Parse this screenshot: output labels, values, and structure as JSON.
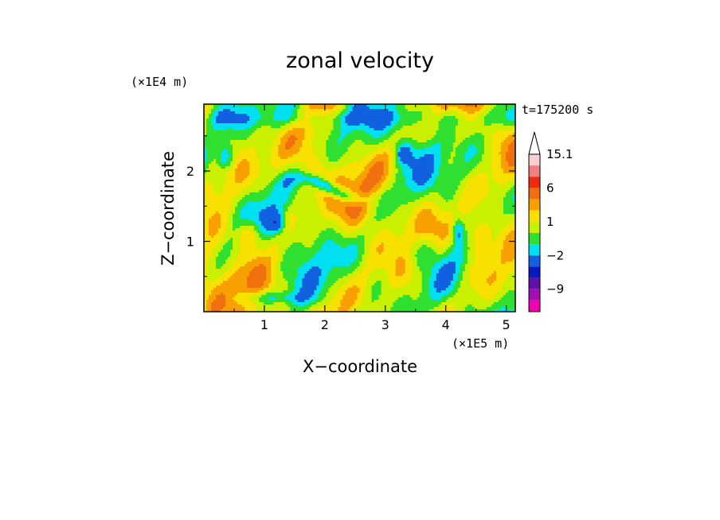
{
  "chart_data": {
    "type": "heatmap",
    "title": "zonal velocity",
    "xlabel": "X−coordinate",
    "ylabel": "Z−coordinate",
    "x_unit": "(×1E5 m)",
    "y_unit": "(×1E4 m)",
    "time_label": "t=175200 s",
    "xlim": [
      0,
      5.15
    ],
    "ylim": [
      0,
      2.95
    ],
    "x_ticks": [
      "1",
      "2",
      "3",
      "4",
      "5"
    ],
    "y_ticks": [
      "1",
      "2"
    ],
    "x_tick_values": [
      1,
      2,
      3,
      4,
      5
    ],
    "y_tick_values": [
      1,
      2
    ],
    "colorbar": {
      "labels": [
        "15.1",
        "6",
        "1",
        "−2",
        "−9"
      ],
      "label_values": [
        15.1,
        6,
        1,
        -2,
        -9
      ],
      "bands_top_to_bottom": [
        {
          "color": "#f8d0d0",
          "low": 12,
          "high": 15.1
        },
        {
          "color": "#f08080",
          "low": 9,
          "high": 12
        },
        {
          "color": "#ee2a10",
          "low": 6,
          "high": 9
        },
        {
          "color": "#f07010",
          "low": 3,
          "high": 6
        },
        {
          "color": "#f8a000",
          "low": 2,
          "high": 3
        },
        {
          "color": "#f8e000",
          "low": 1,
          "high": 2
        },
        {
          "color": "#c8f000",
          "low": 0,
          "high": 1
        },
        {
          "color": "#30e030",
          "low": -1,
          "high": 0
        },
        {
          "color": "#00e0f0",
          "low": -2,
          "high": -1
        },
        {
          "color": "#1060e0",
          "low": -4,
          "high": -2
        },
        {
          "color": "#0a18c0",
          "low": -6,
          "high": -4
        },
        {
          "color": "#6010a8",
          "low": -9,
          "high": -6
        },
        {
          "color": "#a010b0",
          "low": -12,
          "high": -9
        },
        {
          "color": "#f000b0",
          "low": -15,
          "high": -12
        }
      ],
      "extend": "max"
    }
  }
}
